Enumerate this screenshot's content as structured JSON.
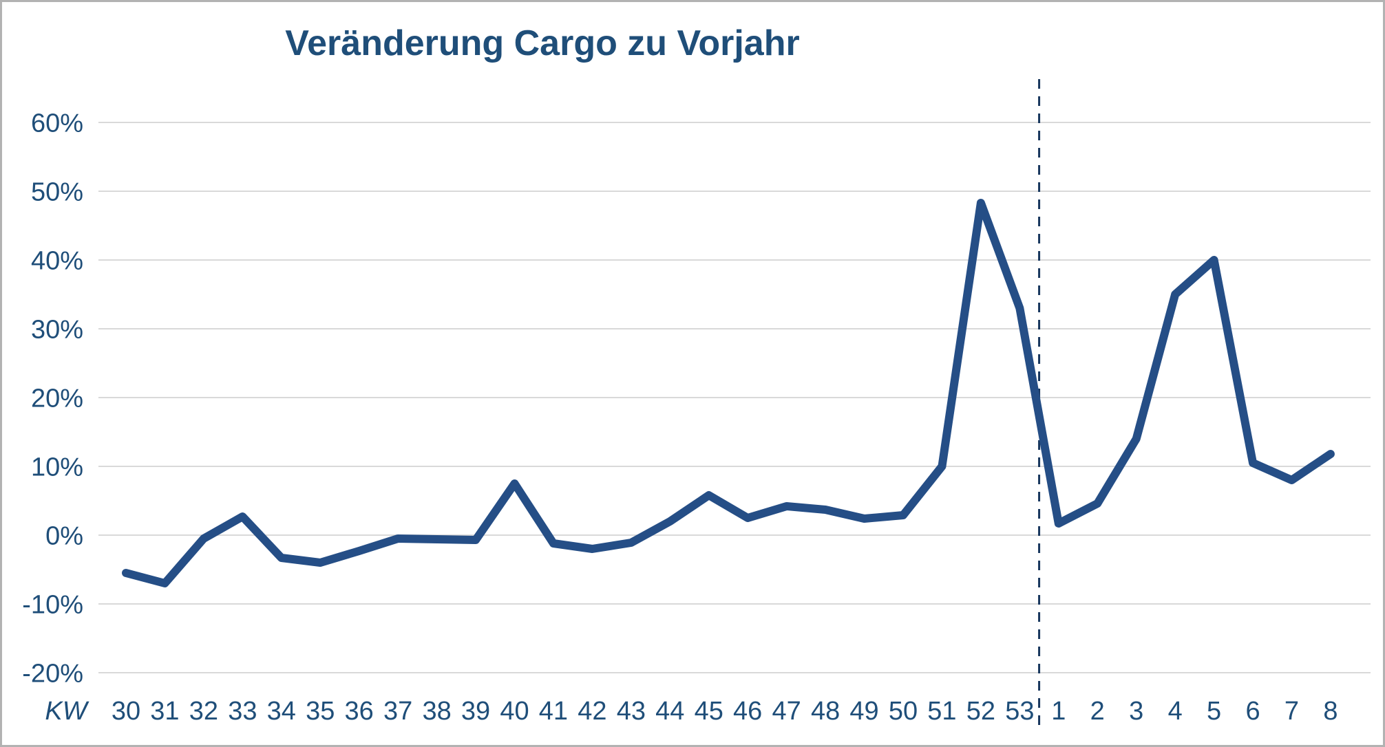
{
  "chart_data": {
    "type": "line",
    "title": "Veränderung Cargo zu Vorjahr",
    "title_color": "#1f4e79",
    "x_axis_prefix_label": "KW",
    "categories": [
      "30",
      "31",
      "32",
      "33",
      "34",
      "35",
      "36",
      "37",
      "38",
      "39",
      "40",
      "41",
      "42",
      "43",
      "44",
      "45",
      "46",
      "47",
      "48",
      "49",
      "50",
      "51",
      "52",
      "53",
      "1",
      "2",
      "3",
      "4",
      "5",
      "6",
      "7",
      "8"
    ],
    "values": [
      -5.5,
      -7,
      -0.5,
      2.7,
      -3.3,
      -4,
      -2.3,
      -0.5,
      -0.6,
      -0.7,
      7.5,
      -1.2,
      -2,
      -1.1,
      2,
      5.8,
      2.5,
      4.2,
      3.7,
      2.4,
      2.9,
      10,
      48.3,
      33,
      1.7,
      4.6,
      14,
      35,
      40,
      10.5,
      8,
      11.8
    ],
    "unit": "%",
    "ylim": [
      -20,
      60
    ],
    "ytick_step": 10,
    "ytick_labels": [
      "60%",
      "50%",
      "40%",
      "30%",
      "20%",
      "10%",
      "0%",
      "-10%",
      "-20%"
    ],
    "grid": true,
    "gridline_color": "#d9d9d9",
    "axis_label_color": "#1f4e79",
    "line_color": "#254e86",
    "line_width": 12,
    "legend": "none",
    "divider": {
      "style": "dashed",
      "color": "#17365d",
      "between": [
        "53",
        "1"
      ]
    }
  }
}
